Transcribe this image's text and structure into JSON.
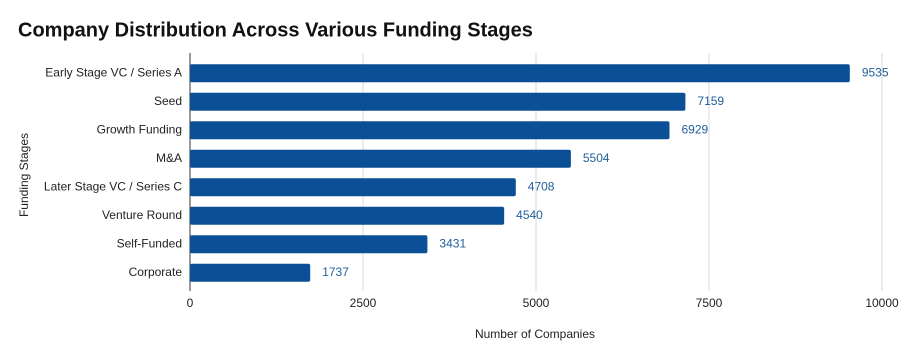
{
  "chart_data": {
    "type": "bar",
    "orientation": "horizontal",
    "title": "Company Distribution Across Various Funding Stages",
    "x_label": "Number of Companies",
    "y_label": "Funding Stages",
    "categories": [
      "Early Stage VC / Series A",
      "Seed",
      "Growth Funding",
      "M&A",
      "Later Stage VC / Series C",
      "Venture Round",
      "Self-Funded",
      "Corporate"
    ],
    "values": [
      9535,
      7159,
      6929,
      5504,
      4708,
      4540,
      3431,
      1737
    ],
    "color": "#0b4f96",
    "xlim": [
      0,
      10000
    ],
    "xticks": [
      0,
      2500,
      5000,
      7500,
      10000
    ],
    "grid": true
  }
}
